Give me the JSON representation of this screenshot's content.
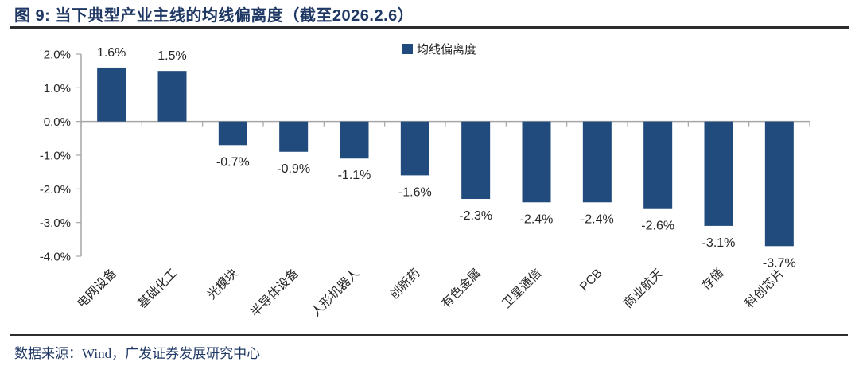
{
  "chart_data": {
    "type": "bar",
    "title": "图 9: 当下典型产业主线的均线偏离度（截至2026.2.6）",
    "legend_label": "均线偏离度",
    "legend_position": "top-center",
    "xlabel": "",
    "ylabel": "",
    "grid": false,
    "ylim": [
      -4.0,
      2.0
    ],
    "y_ticks": [
      {
        "value": 2.0,
        "label": "2.0%"
      },
      {
        "value": 1.0,
        "label": "1.0%"
      },
      {
        "value": 0.0,
        "label": "0.0%"
      },
      {
        "value": -1.0,
        "label": "-1.0%"
      },
      {
        "value": -2.0,
        "label": "-2.0%"
      },
      {
        "value": -3.0,
        "label": "-3.0%"
      },
      {
        "value": -4.0,
        "label": "-4.0%"
      }
    ],
    "categories": [
      "电网设备",
      "基础化工",
      "光模块",
      "半导体设备",
      "人形机器人",
      "创新药",
      "有色金属",
      "卫星通信",
      "PCB",
      "商业航天",
      "存储",
      "科创芯片"
    ],
    "series": [
      {
        "name": "均线偏离度",
        "values": [
          1.6,
          1.5,
          -0.7,
          -0.9,
          -1.1,
          -1.6,
          -2.3,
          -2.4,
          -2.4,
          -2.6,
          -3.1,
          -3.7
        ],
        "value_labels": [
          "1.6%",
          "1.5%",
          "-0.7%",
          "-0.9%",
          "-1.1%",
          "-1.6%",
          "-2.3%",
          "-2.4%",
          "-2.4%",
          "-2.6%",
          "-3.1%",
          "-3.7%"
        ]
      }
    ]
  },
  "footer": {
    "source": "数据来源：Wind，广发证券发展研究中心"
  },
  "colors": {
    "bar": "#204B7C",
    "axis": "#A6A6A6",
    "label": "#262626",
    "title": "#1F3864",
    "rule": "#2D2D2D",
    "source_text": "#1F3864"
  }
}
